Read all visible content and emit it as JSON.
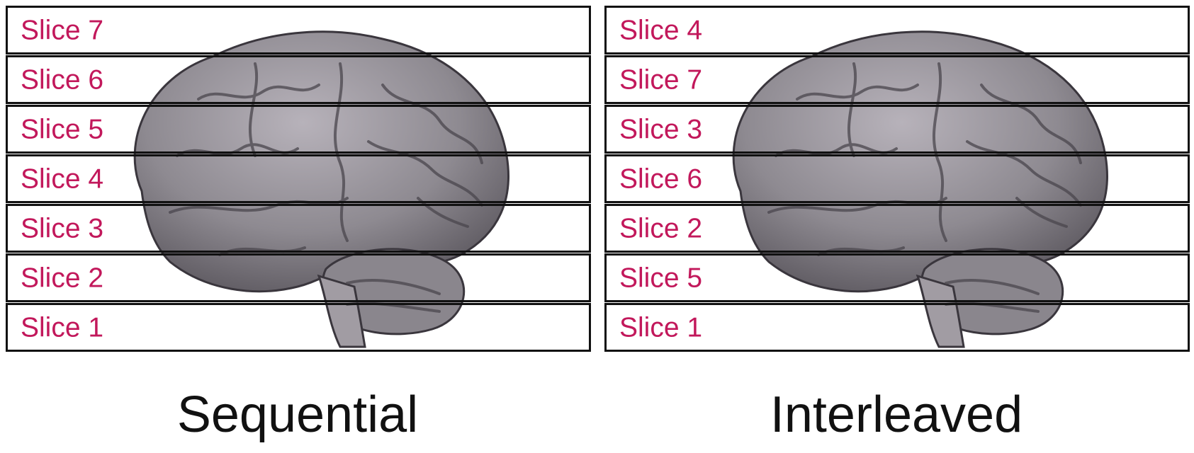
{
  "colors": {
    "label": "#c2185b",
    "border": "#111111",
    "brain_fill": "#8e8a91",
    "brain_stroke": "#3a363d"
  },
  "panels": [
    {
      "caption": "Sequential",
      "slices": [
        "Slice 7",
        "Slice 6",
        "Slice 5",
        "Slice 4",
        "Slice 3",
        "Slice 2",
        "Slice 1"
      ]
    },
    {
      "caption": "Interleaved",
      "slices": [
        "Slice 4",
        "Slice 7",
        "Slice 3",
        "Slice 6",
        "Slice 2",
        "Slice 5",
        "Slice 1"
      ]
    }
  ]
}
